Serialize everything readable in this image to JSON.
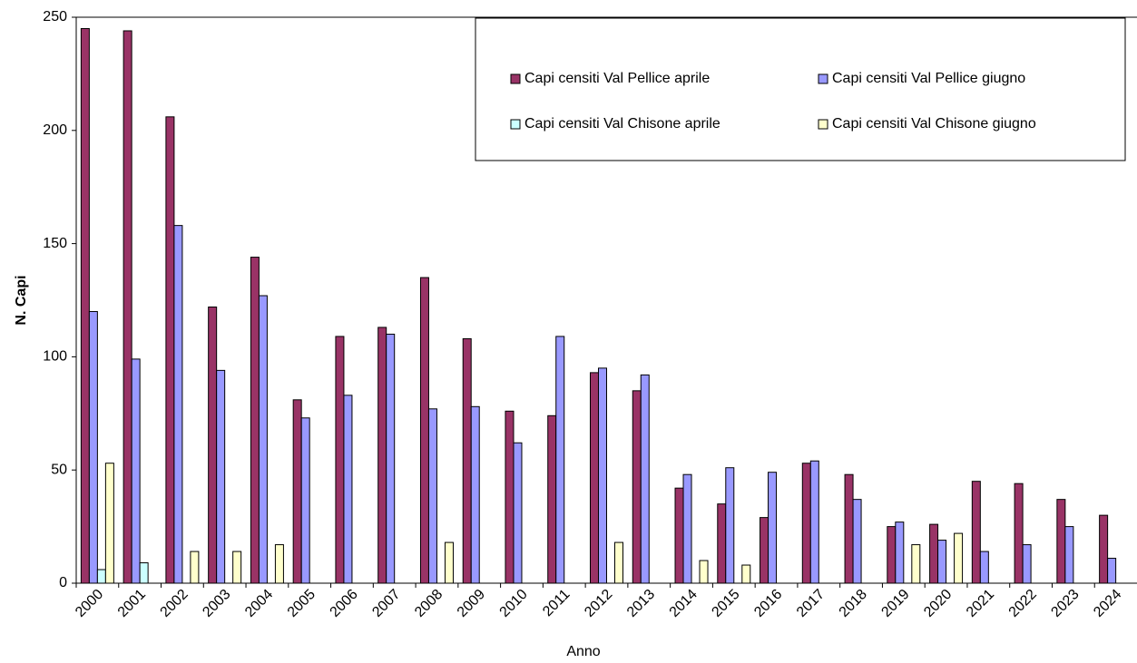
{
  "chart_data": {
    "type": "bar",
    "x_label": "Anno",
    "y_label": "N. Capi",
    "categories": [
      "2000",
      "2001",
      "2002",
      "2003",
      "2004",
      "2005",
      "2006",
      "2007",
      "2008",
      "2009",
      "2010",
      "2011",
      "2012",
      "2013",
      "2014",
      "2015",
      "2016",
      "2017",
      "2018",
      "2019",
      "2020",
      "2021",
      "2022",
      "2023",
      "2024"
    ],
    "series": [
      {
        "name": "Capi censiti Val Pellice aprile",
        "color": "#993366",
        "values": [
          245,
          244,
          206,
          122,
          144,
          81,
          109,
          113,
          135,
          108,
          76,
          74,
          93,
          85,
          42,
          35,
          29,
          53,
          48,
          25,
          26,
          45,
          44,
          37,
          30
        ]
      },
      {
        "name": "Capi censiti Val Pellice giugno",
        "color": "#9999ff",
        "values": [
          120,
          99,
          158,
          94,
          127,
          73,
          83,
          110,
          77,
          78,
          62,
          109,
          95,
          92,
          48,
          51,
          49,
          54,
          37,
          27,
          19,
          14,
          17,
          25,
          11
        ]
      },
      {
        "name": "Capi censiti Val Chisone aprile",
        "color": "#ccffff",
        "values": [
          6,
          9,
          null,
          null,
          null,
          null,
          null,
          null,
          null,
          null,
          null,
          null,
          null,
          null,
          null,
          null,
          null,
          null,
          null,
          null,
          null,
          null,
          null,
          null,
          null
        ]
      },
      {
        "name": "Capi censiti Val Chisone giugno",
        "color": "#ffffcc",
        "values": [
          53,
          null,
          14,
          14,
          17,
          null,
          null,
          null,
          18,
          null,
          null,
          null,
          18,
          null,
          10,
          8,
          null,
          null,
          null,
          17,
          22,
          null,
          null,
          null,
          null
        ]
      }
    ],
    "ylim": [
      0,
      250
    ],
    "yticks": [
      0,
      50,
      100,
      150,
      200,
      250
    ],
    "grid": false,
    "legend": "top-right"
  }
}
